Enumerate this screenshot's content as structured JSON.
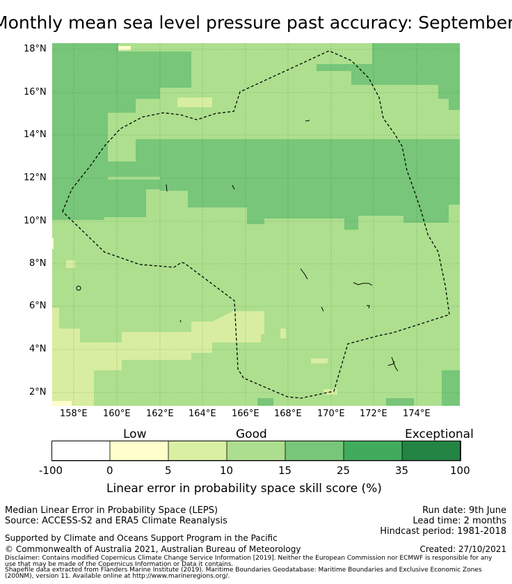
{
  "title": "Monthly mean sea level pressure past accuracy: September",
  "map": {
    "lat_labels": [
      "18°N",
      "16°N",
      "14°N",
      "12°N",
      "10°N",
      "8°N",
      "6°N",
      "4°N",
      "2°N"
    ],
    "lon_labels": [
      "158°E",
      "160°E",
      "162°E",
      "164°E",
      "166°E",
      "168°E",
      "170°E",
      "172°E",
      "174°E"
    ],
    "lat_range": [
      1.4,
      18.2
    ],
    "lon_range": [
      157,
      176
    ],
    "colors": {
      "light_yellow_green": "#d8eda0",
      "light_green": "#addf8e",
      "mid_green": "#77c679",
      "pale_yellow": "#fefecc"
    },
    "boundary": "dashed EEZ outline"
  },
  "colorbar": {
    "categories": [
      {
        "label": "Low"
      },
      {
        "label": "Good"
      },
      {
        "label": "Exceptional"
      }
    ],
    "ticks": [
      "-100",
      "0",
      "5",
      "10",
      "15",
      "25",
      "35",
      "100"
    ],
    "bin_colors": [
      "#ffffff",
      "#ffffcc",
      "#d9f0a3",
      "#addd8e",
      "#78c679",
      "#41ab5d",
      "#238443"
    ],
    "label": "Linear error in probability space skill score (%)"
  },
  "footer": {
    "left_line1": "Median Linear Error in Probability Space (LEPS)",
    "left_line2": "Source: ACCESS-S2 and ERA5 Climate Reanalysis",
    "right_line1": "Run date: 9th June",
    "right_line2": "Lead time: 2 months",
    "right_line3": "Hindcast period: 1981-2018",
    "support": "Supported by Climate and Oceans Support Program in the Pacific",
    "copyright": "© Commonwealth of Australia 2021, Australian Bureau of Meteorology",
    "created": "Created: 27/10/2021",
    "disclaimer1": "Disclaimer: Contains modified Copernicus Climate Change Service Information [2019]. Neither the European Commission nor ECMWF is responsible for any",
    "disclaimer2": "use that may be made of the Copernicus Information or Data it contains.",
    "disclaimer3": "Shapefile data extracted from Flanders Marine Institute (2019). Maritime Boundaries Geodatabase: Maritime Boundaries and Exclusive Economic Zones",
    "disclaimer4": "(200NM), version 11. Available online at http://www.marineregions.org/."
  }
}
